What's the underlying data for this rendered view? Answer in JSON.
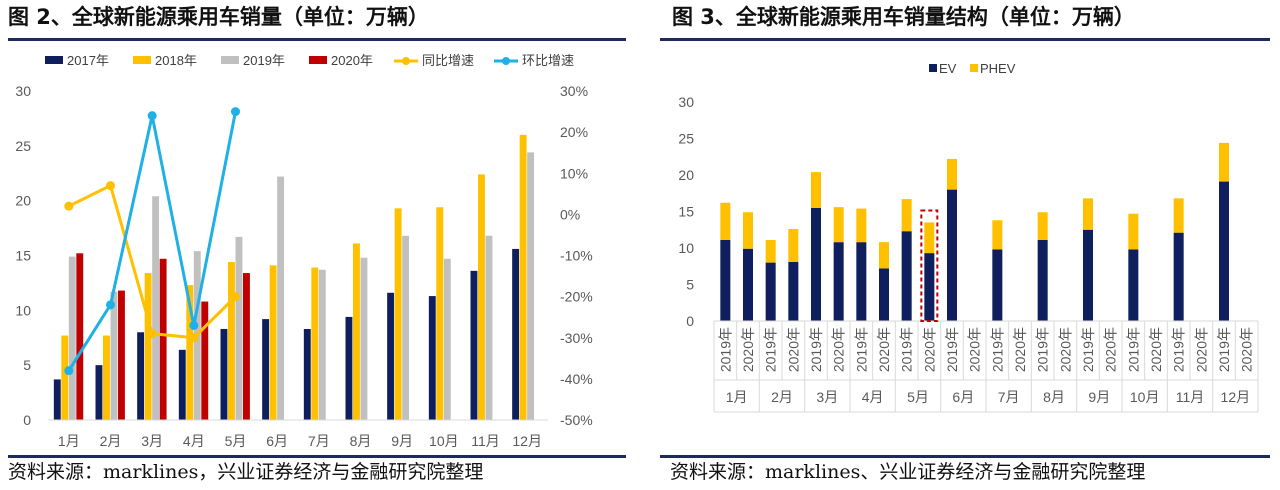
{
  "fig_left": {
    "title": "图 2、全球新能源乘用车销量（单位：万辆）",
    "source": "资料来源：marklines，兴业证券经济与金融研究院整理"
  },
  "fig_right": {
    "title": "图 3、全球新能源乘用车销量结构（单位：万辆）",
    "source": "资料来源：marklines、兴业证券经济与金融研究院整理"
  },
  "colors": {
    "s2017": "#0f1e5c",
    "s2018": "#ffc000",
    "s2019": "#c0c0c0",
    "s2020": "#c00000",
    "yoy": "#ffc000",
    "mom": "#1fb0e6",
    "ev": "#0f1e5c",
    "phev": "#ffc000",
    "rule": "#1c2a5c",
    "axis": "#d9d9d9",
    "highlight": "#c00000"
  },
  "chart_data": [
    {
      "type": "bar",
      "categories": [
        "1月",
        "2月",
        "3月",
        "4月",
        "5月",
        "6月",
        "7月",
        "8月",
        "9月",
        "10月",
        "11月",
        "12月"
      ],
      "series": [
        {
          "name": "2017年",
          "color_key": "s2017",
          "values": [
            3.7,
            5.0,
            8.0,
            6.4,
            8.3,
            9.2,
            8.3,
            9.4,
            11.6,
            11.3,
            13.6,
            15.6
          ]
        },
        {
          "name": "2018年",
          "color_key": "s2018",
          "values": [
            7.7,
            7.7,
            13.4,
            12.3,
            14.4,
            14.1,
            13.9,
            16.1,
            19.3,
            19.4,
            22.4,
            26.0
          ]
        },
        {
          "name": "2019年",
          "color_key": "s2019",
          "values": [
            14.9,
            11.7,
            20.4,
            15.4,
            16.7,
            22.2,
            13.7,
            14.8,
            16.8,
            14.7,
            16.8,
            24.4
          ]
        },
        {
          "name": "2020年",
          "color_key": "s2020",
          "values": [
            15.2,
            11.8,
            14.7,
            10.8,
            13.4,
            null,
            null,
            null,
            null,
            null,
            null,
            null
          ]
        }
      ],
      "lines": [
        {
          "name": "同比增速",
          "color_key": "yoy",
          "axis": "right",
          "values": [
            2,
            7,
            -29,
            -30,
            -20,
            null,
            null,
            null,
            null,
            null,
            null,
            null
          ]
        },
        {
          "name": "环比增速",
          "color_key": "mom",
          "axis": "right",
          "values": [
            -38,
            -22,
            24,
            -27,
            25,
            null,
            null,
            null,
            null,
            null,
            null,
            null
          ]
        }
      ],
      "y_left": {
        "min": 0,
        "max": 30,
        "ticks": [
          "0",
          "5",
          "10",
          "15",
          "20",
          "25",
          "30"
        ]
      },
      "y_right": {
        "min": -50,
        "max": 30,
        "ticks": [
          "-50%",
          "-40%",
          "-30%",
          "-20%",
          "-10%",
          "0%",
          "10%",
          "20%",
          "30%"
        ]
      },
      "legend_position": "top",
      "grid": false
    },
    {
      "type": "bar",
      "stacked": true,
      "months": [
        "1月",
        "2月",
        "3月",
        "4月",
        "5月",
        "6月",
        "7月",
        "8月",
        "9月",
        "10月",
        "11月",
        "12月"
      ],
      "years": [
        "2019年",
        "2020年"
      ],
      "series": [
        {
          "name": "EV",
          "color_key": "ev",
          "values": [
            [
              11.1,
              9.9
            ],
            [
              8.0,
              8.1
            ],
            [
              15.5,
              10.8
            ],
            [
              10.8,
              7.2
            ],
            [
              12.3,
              9.3
            ],
            [
              18.0,
              null
            ],
            [
              9.8,
              null
            ],
            [
              11.1,
              null
            ],
            [
              12.5,
              null
            ],
            [
              9.8,
              null
            ],
            [
              12.1,
              null
            ],
            [
              19.1,
              null
            ]
          ]
        },
        {
          "name": "PHEV",
          "color_key": "phev",
          "values": [
            [
              5.1,
              5.0
            ],
            [
              3.1,
              4.5
            ],
            [
              4.9,
              4.8
            ],
            [
              4.6,
              3.6
            ],
            [
              4.4,
              4.2
            ],
            [
              4.2,
              null
            ],
            [
              4.0,
              null
            ],
            [
              3.8,
              null
            ],
            [
              4.3,
              null
            ],
            [
              4.9,
              null
            ],
            [
              4.7,
              null
            ],
            [
              5.3,
              null
            ]
          ]
        }
      ],
      "highlight": {
        "month": "5月",
        "year": "2020年"
      },
      "y_axis": {
        "min": 0,
        "max": 30,
        "ticks": [
          "0",
          "5",
          "10",
          "15",
          "20",
          "25",
          "30"
        ]
      },
      "legend_position": "top",
      "grid": false
    }
  ]
}
